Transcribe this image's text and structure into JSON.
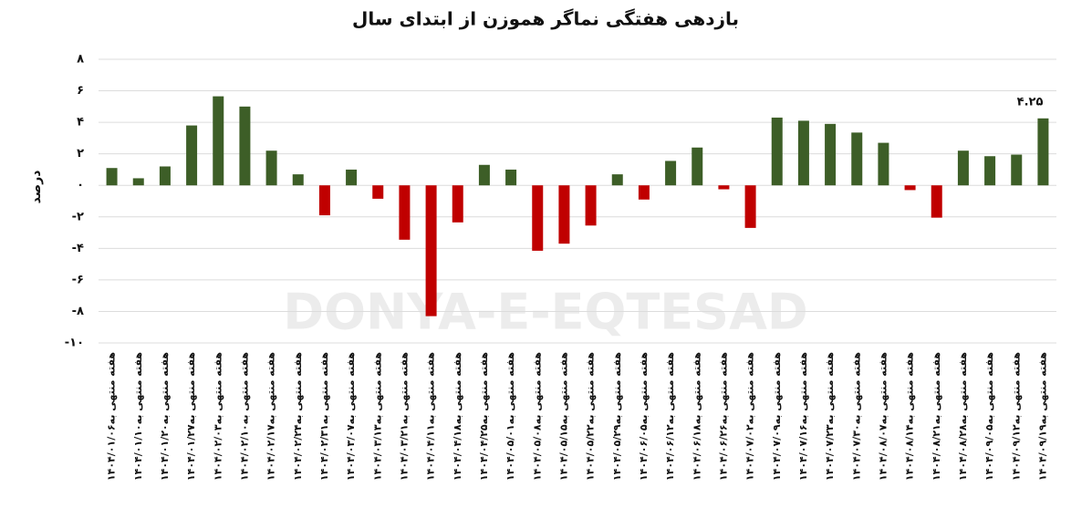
{
  "chart_data": {
    "type": "bar",
    "title": "بازدهی هفتگی نماگر هموزن از ابتدای سال",
    "y_label": "درصد",
    "watermark": "DONYA-E-EQTESAD",
    "categories": [
      "هفته منتهی به۱۴۰۴/۰۱/۰۶",
      "هفته منتهی به۱۴۰۴/۰۱/۱۰",
      "هفته منتهی به۱۴۰۴/۰۱/۲۰",
      "هفته منتهی به۱۴۰۴/۰۱/۲۷",
      "هفته منتهی به۱۴۰۴/۰۲/۰۳",
      "هفته منتهی به۱۴۰۴/۰۲/۱۰",
      "هفته منتهی به۱۴۰۴/۰۲/۱۷",
      "هفته منتهی به۱۴۰۴/۰۲/۲۴",
      "هفته منتهی به۱۴۰۴/۰۲/۳۱",
      "هفته منتهی به۱۴۰۴/۰۳/۰۷",
      "هفته منتهی به۱۴۰۴/۰۳/۱۳",
      "هفته منتهی به۱۴۰۴/۰۳/۲۱",
      "هفته منتهی به۱۴۰۴/۰۴/۱۱",
      "هفته منتهی به۱۴۰۴/۰۴/۱۸",
      "هفته منتهی به۱۴۰۴/۰۴/۲۵",
      "هفته منتهی به۱۴۰۴/۰۵/۰۱",
      "هفته منتهی به۱۴۰۴/۰۵/۰۸",
      "هفته منتهی به۱۴۰۴/۰۵/۱۵",
      "هفته منتهی به۱۴۰۴/۰۵/۲۲",
      "هفته منتهی به۱۴۰۴/۰۵/۲۹",
      "هفته منتهی به۱۴۰۴/۰۶/۰۵",
      "هفته منتهی به۱۴۰۴/۰۶/۱۲",
      "هفته منتهی به۱۴۰۴/۰۶/۱۸",
      "هفته منتهی به۱۴۰۴/۰۶/۲۶",
      "هفته منتهی به۱۴۰۴/۰۷/۰۲",
      "هفته منتهی به۱۴۰۴/۰۷/۰۹",
      "هفته منتهی به۱۴۰۴/۰۷/۱۶",
      "هفته منتهی به۱۴۰۴/۰۷/۲۳",
      "هفته منتهی به۱۴۰۴/۰۷/۳۰",
      "هفته منتهی به۱۴۰۴/۰۸/۰۷",
      "هفته منتهی به۱۴۰۴/۰۸/۱۴",
      "هفته منتهی به۱۴۰۴/۰۸/۲۱",
      "هفته منتهی به۱۴۰۴/۰۸/۲۸",
      "هفته منتهی به۱۴۰۴/۰۹/۰۵",
      "هفته منتهی به۱۴۰۴/۰۹/۱۲",
      "هفته منتهی به۱۴۰۴/۰۹/۱۹"
    ],
    "values": [
      1.1,
      0.45,
      1.2,
      3.8,
      5.65,
      5.0,
      2.2,
      0.7,
      -1.9,
      1.0,
      -0.85,
      -3.45,
      -8.3,
      -2.35,
      1.3,
      1.0,
      -4.15,
      -3.7,
      -2.55,
      0.7,
      -0.9,
      1.55,
      2.4,
      -0.25,
      -2.7,
      4.3,
      4.1,
      3.9,
      3.35,
      2.7,
      -0.3,
      -2.05,
      2.2,
      1.85,
      1.95,
      4.25
    ],
    "value_labels": [
      null,
      null,
      null,
      null,
      null,
      null,
      null,
      null,
      null,
      null,
      null,
      null,
      null,
      null,
      null,
      null,
      null,
      null,
      null,
      null,
      null,
      null,
      null,
      null,
      null,
      null,
      null,
      null,
      null,
      null,
      null,
      null,
      null,
      null,
      null,
      "۴.۲۵"
    ],
    "positive_color": "#3d5e27",
    "negative_color": "#c00000",
    "ylim": [
      -10,
      8
    ],
    "yticks": [
      {
        "value": 8,
        "label": "۸"
      },
      {
        "value": 6,
        "label": "۶"
      },
      {
        "value": 4,
        "label": "۴"
      },
      {
        "value": 2,
        "label": "۲"
      },
      {
        "value": 0,
        "label": "۰"
      },
      {
        "value": -2,
        "label": "-۲"
      },
      {
        "value": -4,
        "label": "-۴"
      },
      {
        "value": -6,
        "label": "-۶"
      },
      {
        "value": -8,
        "label": "-۸"
      },
      {
        "value": -10,
        "label": "-۱۰"
      }
    ],
    "grid": true
  }
}
